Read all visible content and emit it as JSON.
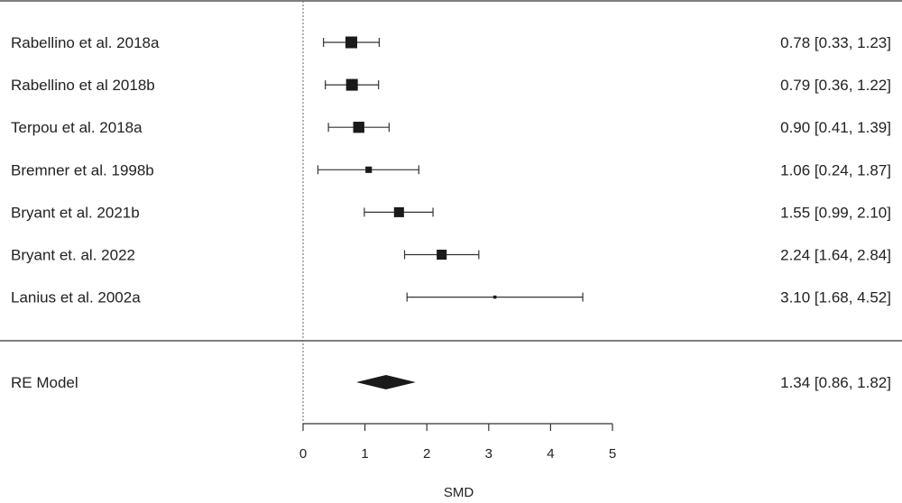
{
  "chart_data": {
    "type": "forest",
    "xlabel": "SMD",
    "xlim": [
      0,
      5
    ],
    "ticks": [
      "0",
      "1",
      "2",
      "3",
      "4",
      "5"
    ],
    "reference_line": 0,
    "studies": [
      {
        "label": "Rabellino et al. 2018a",
        "estimate": 0.78,
        "ci_low": 0.33,
        "ci_high": 1.23,
        "text": "0.78 [0.33, 1.23]",
        "weight": 1.0
      },
      {
        "label": "Rabellino et al 2018b",
        "estimate": 0.79,
        "ci_low": 0.36,
        "ci_high": 1.22,
        "text": "0.79 [0.36, 1.22]",
        "weight": 1.0
      },
      {
        "label": "Terpou et al. 2018a",
        "estimate": 0.9,
        "ci_low": 0.41,
        "ci_high": 1.39,
        "text": "0.90 [0.41, 1.39]",
        "weight": 0.95
      },
      {
        "label": "Bremner et al. 1998b",
        "estimate": 1.06,
        "ci_low": 0.24,
        "ci_high": 1.87,
        "text": "1.06 [0.24, 1.87]",
        "weight": 0.55
      },
      {
        "label": "Bryant et al. 2021b",
        "estimate": 1.55,
        "ci_low": 0.99,
        "ci_high": 2.1,
        "text": "1.55 [0.99, 2.10]",
        "weight": 0.85
      },
      {
        "label": "Bryant et. al. 2022",
        "estimate": 2.24,
        "ci_low": 1.64,
        "ci_high": 2.84,
        "text": "2.24 [1.64, 2.84]",
        "weight": 0.85
      },
      {
        "label": "Lanius et al. 2002a",
        "estimate": 3.1,
        "ci_low": 1.68,
        "ci_high": 4.52,
        "text": "3.10 [1.68, 4.52]",
        "weight": 0.2
      }
    ],
    "summary": {
      "label": "RE Model",
      "estimate": 1.34,
      "ci_low": 0.86,
      "ci_high": 1.82,
      "text": "1.34 [0.86, 1.82]"
    },
    "colors": {
      "marker": "#1a1a1a",
      "line": "#333333",
      "rule": "#555555",
      "reference": "#666666"
    }
  }
}
